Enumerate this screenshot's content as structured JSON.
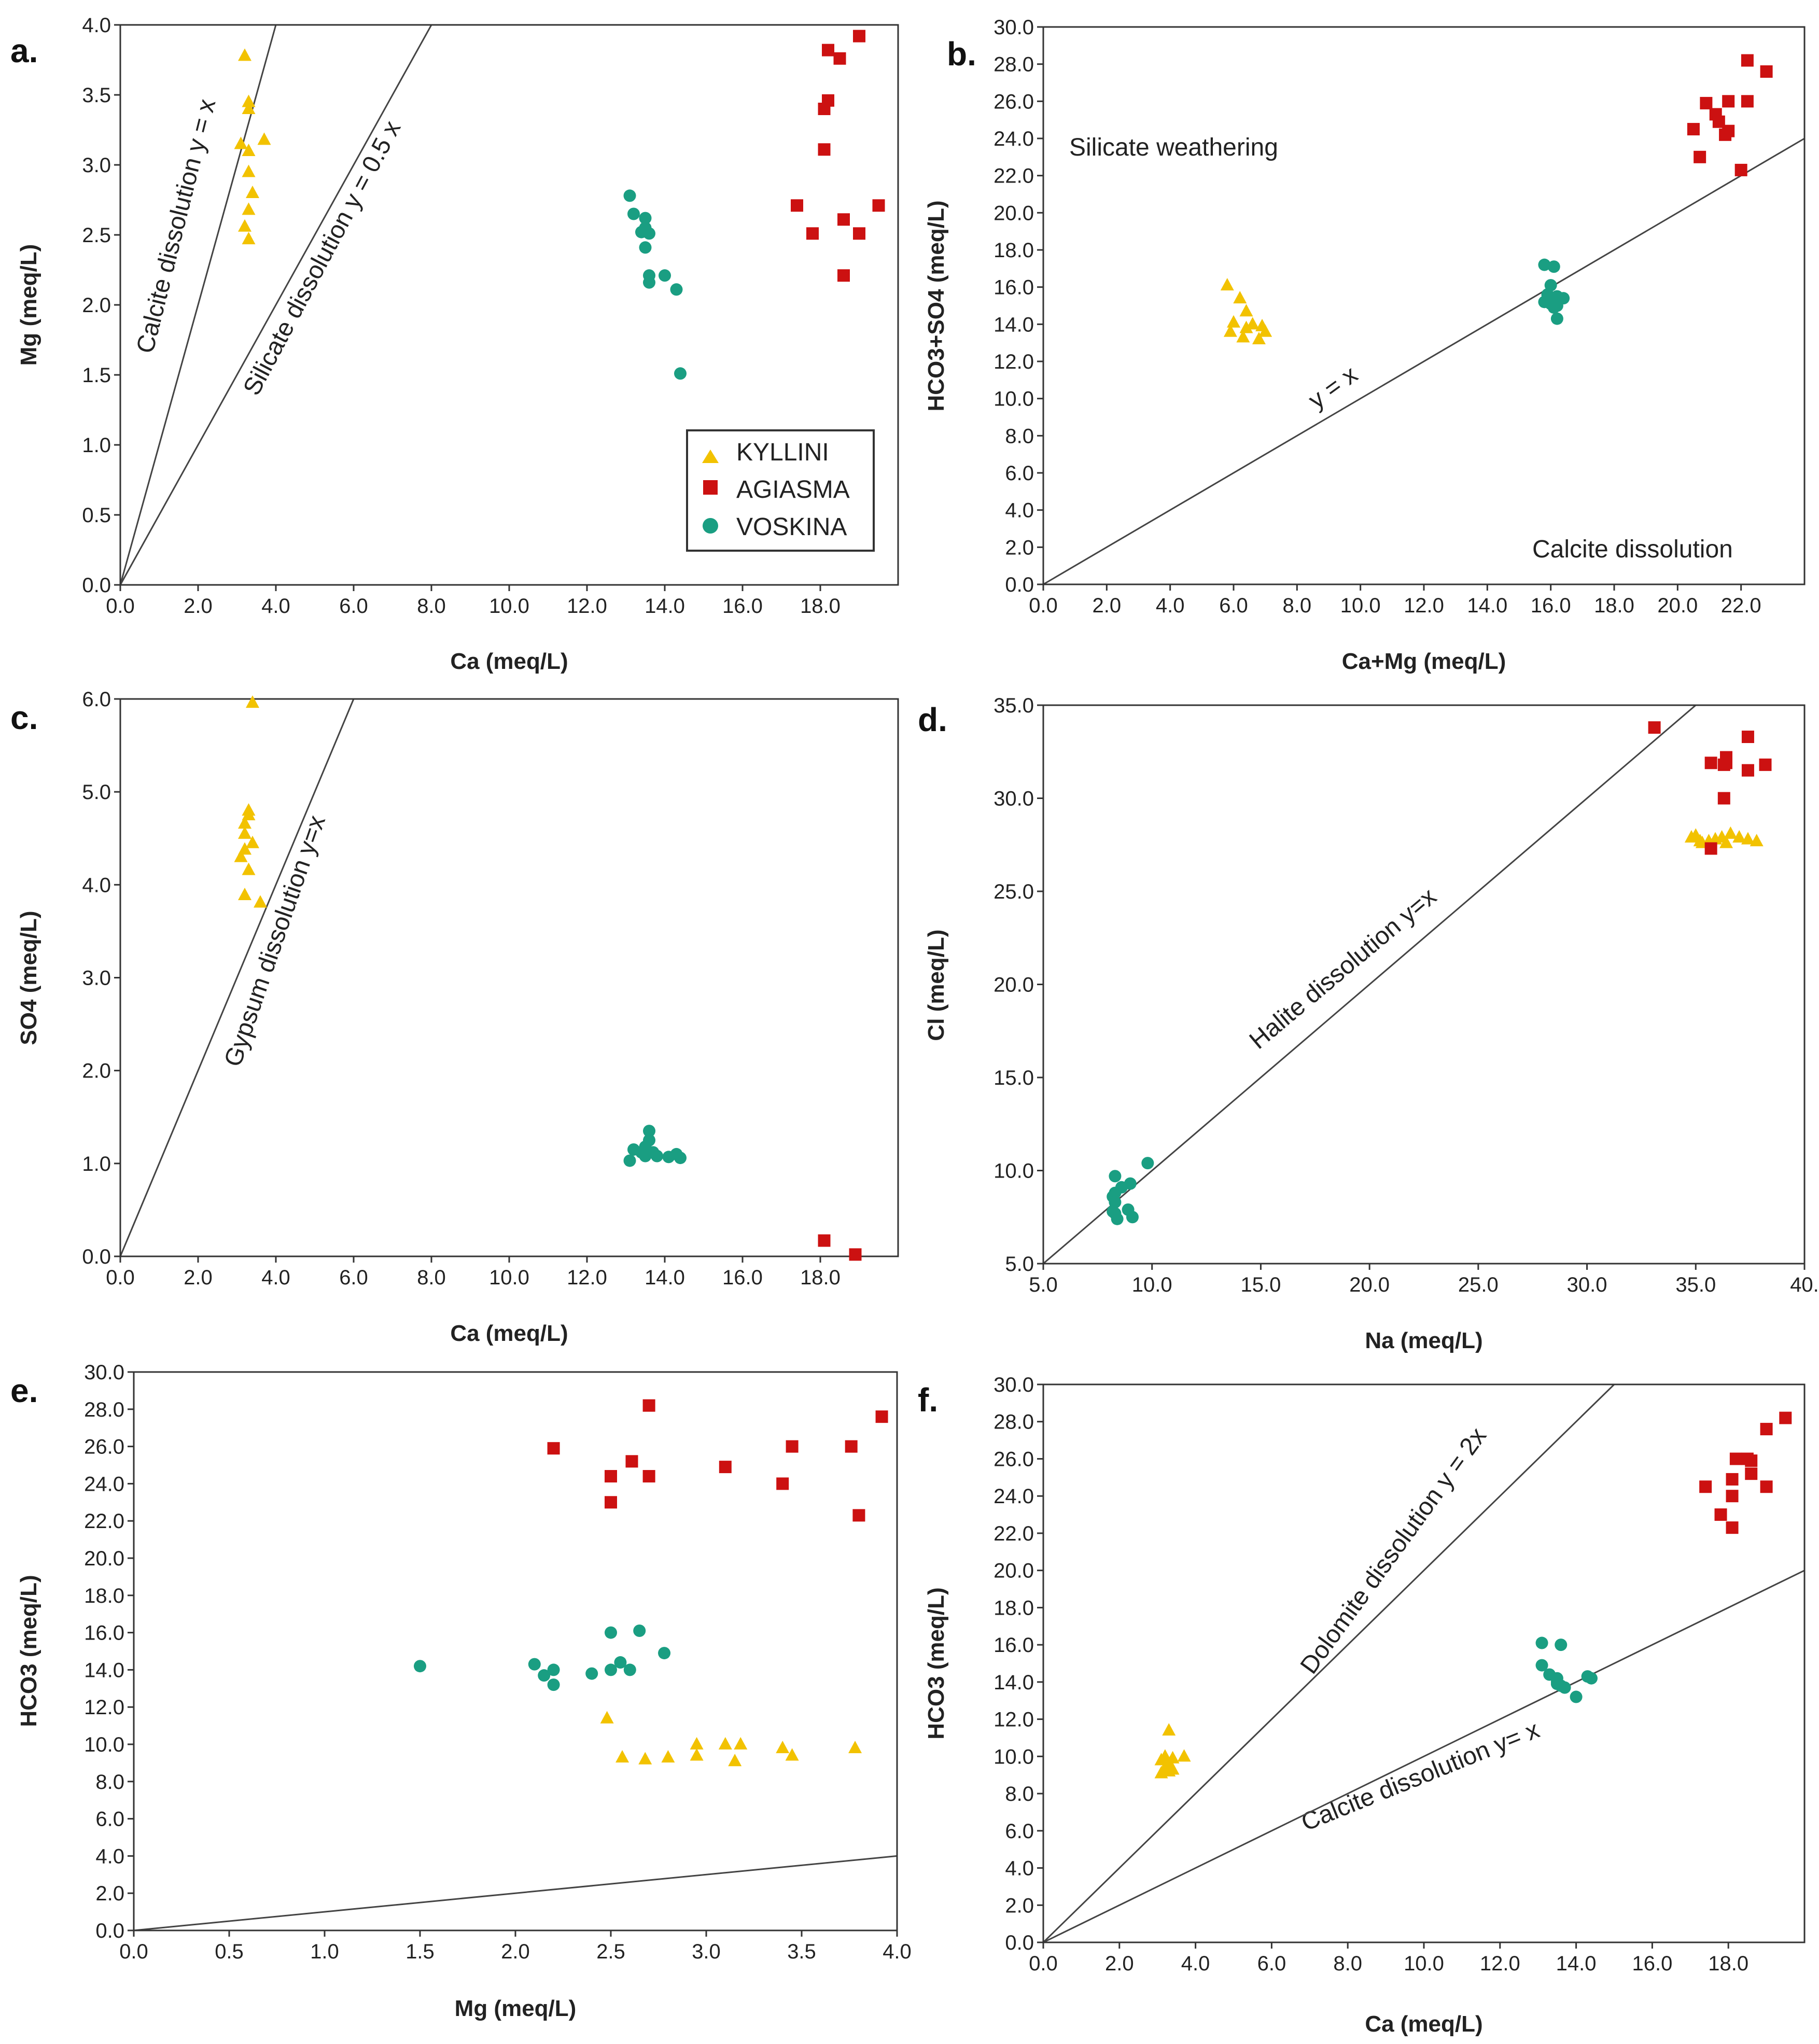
{
  "colors": {
    "kyllini": "#f2c200",
    "agiasma": "#cc1111",
    "voskina": "#1a9e82",
    "axis": "#333333",
    "line": "#444444"
  },
  "legend": [
    {
      "key": "kyllini",
      "label": "KYLLINI",
      "marker": "triangle"
    },
    {
      "key": "agiasma",
      "label": "AGIASMA",
      "marker": "square"
    },
    {
      "key": "voskina",
      "label": "VOSKINA",
      "marker": "circle"
    }
  ],
  "chart_data": [
    {
      "id": "a",
      "panel_label": "a.",
      "type": "scatter",
      "xlabel": "Ca (meq/L)",
      "ylabel": "Mg (meq/L)",
      "xlim": [
        0,
        20
      ],
      "ylim": [
        0,
        4
      ],
      "xticks": [
        "0.0",
        "2.0",
        "4.0",
        "6.0",
        "8.0",
        "10.0",
        "12.0",
        "14.0",
        "16.0",
        "18.0"
      ],
      "yticks": [
        "0.0",
        "0.5",
        "1.0",
        "1.5",
        "2.0",
        "2.5",
        "3.0",
        "3.5",
        "4.0"
      ],
      "lines": [
        {
          "slope": 1,
          "label": "Calcite dissolution  y = x"
        },
        {
          "slope": 0.5,
          "label": "Silicate dissolution  y = 0.5 x"
        }
      ],
      "annotations": [],
      "series": [
        {
          "name": "KYLLINI",
          "x": [
            3.2,
            3.3,
            3.3,
            3.1,
            3.3,
            3.7,
            3.3,
            3.4,
            3.3,
            3.2,
            3.3
          ],
          "y": [
            3.78,
            3.45,
            3.4,
            3.15,
            3.1,
            3.18,
            2.95,
            2.8,
            2.68,
            2.56,
            2.47
          ]
        },
        {
          "name": "AGIASMA",
          "x": [
            19.0,
            18.2,
            18.5,
            18.2,
            18.1,
            18.1,
            17.4,
            17.8,
            18.6,
            19.0,
            19.5,
            18.6
          ],
          "y": [
            3.92,
            3.82,
            3.76,
            3.46,
            3.4,
            3.11,
            2.71,
            2.51,
            2.61,
            2.51,
            2.71,
            2.21
          ]
        },
        {
          "name": "VOSKINA",
          "x": [
            13.1,
            13.2,
            13.5,
            13.5,
            13.4,
            13.6,
            13.5,
            13.6,
            13.6,
            14.0,
            14.3,
            14.4
          ],
          "y": [
            2.78,
            2.65,
            2.62,
            2.55,
            2.52,
            2.51,
            2.41,
            2.21,
            2.16,
            2.21,
            2.11,
            1.51
          ]
        }
      ]
    },
    {
      "id": "b",
      "panel_label": "b.",
      "type": "scatter",
      "xlabel": "Ca+Mg (meq/L)",
      "ylabel": "HCO3+SO4 (meq/L)",
      "xlim": [
        0,
        24
      ],
      "ylim": [
        0,
        30
      ],
      "xticks": [
        "0.0",
        "2.0",
        "4.0",
        "6.0",
        "8.0",
        "10.0",
        "12.0",
        "14.0",
        "16.0",
        "18.0",
        "20.0",
        "22.0"
      ],
      "yticks": [
        "0.0",
        "2.0",
        "4.0",
        "6.0",
        "8.0",
        "10.0",
        "12.0",
        "14.0",
        "16.0",
        "18.0",
        "20.0",
        "22.0",
        "24.0",
        "26.0",
        "28.0",
        "30.0"
      ],
      "lines": [
        {
          "slope": 1,
          "label": "y = x"
        }
      ],
      "annotations": [
        "Silicate weathering",
        "Calcite dissolution"
      ],
      "series": [
        {
          "name": "KYLLINI",
          "x": [
            5.8,
            6.2,
            6.4,
            6.0,
            6.6,
            6.9,
            6.4,
            7.0,
            5.9,
            6.3,
            6.8
          ],
          "y": [
            16.1,
            15.4,
            14.7,
            14.1,
            14.0,
            13.9,
            13.8,
            13.6,
            13.6,
            13.3,
            13.2
          ]
        },
        {
          "name": "AGIASMA",
          "x": [
            22.2,
            22.8,
            20.9,
            21.6,
            21.2,
            21.3,
            22.2,
            21.5,
            20.5,
            21.6,
            20.7,
            22.0
          ],
          "y": [
            28.2,
            27.6,
            25.9,
            26.0,
            25.3,
            24.9,
            26.0,
            24.2,
            24.5,
            24.4,
            23.0,
            22.3
          ]
        },
        {
          "name": "VOSKINA",
          "x": [
            15.8,
            16.1,
            16.0,
            15.9,
            16.2,
            16.4,
            15.8,
            16.0,
            16.2,
            16.1,
            15.9,
            16.2
          ],
          "y": [
            17.2,
            17.1,
            16.1,
            15.6,
            15.5,
            15.4,
            15.2,
            15.1,
            15.0,
            14.9,
            15.6,
            14.3
          ]
        }
      ]
    },
    {
      "id": "c",
      "panel_label": "c.",
      "type": "scatter",
      "xlabel": "Ca (meq/L)",
      "ylabel": "SO4 (meq/L)",
      "xlim": [
        0,
        20
      ],
      "ylim": [
        0,
        6
      ],
      "xticks": [
        "0.0",
        "2.0",
        "4.0",
        "6.0",
        "8.0",
        "10.0",
        "12.0",
        "14.0",
        "16.0",
        "18.0"
      ],
      "yticks": [
        "0.0",
        "1.0",
        "2.0",
        "3.0",
        "4.0",
        "5.0",
        "6.0"
      ],
      "lines": [
        {
          "slope": 1,
          "label": "Gypsum dissolution  y=x"
        }
      ],
      "annotations": [],
      "series": [
        {
          "name": "KYLLINI",
          "x": [
            3.4,
            3.3,
            3.3,
            3.2,
            3.4,
            3.2,
            3.1,
            3.3,
            3.2,
            3.6,
            3.2
          ],
          "y": [
            5.96,
            4.8,
            4.75,
            4.66,
            4.45,
            4.38,
            4.3,
            4.16,
            3.89,
            3.81,
            4.55
          ]
        },
        {
          "name": "AGIASMA",
          "x": [
            18.1,
            18.9
          ],
          "y": [
            0.17,
            0.02
          ]
        },
        {
          "name": "VOSKINA",
          "x": [
            13.6,
            13.6,
            13.5,
            13.2,
            13.4,
            13.8,
            14.3,
            14.4,
            13.1,
            13.5,
            13.7,
            14.1
          ],
          "y": [
            1.35,
            1.25,
            1.18,
            1.15,
            1.12,
            1.08,
            1.1,
            1.06,
            1.03,
            1.08,
            1.12,
            1.07
          ]
        }
      ]
    },
    {
      "id": "d",
      "panel_label": "d.",
      "type": "scatter",
      "xlabel": "Na (meq/L)",
      "ylabel": "Cl (meq/L)",
      "xlim": [
        5,
        40
      ],
      "ylim": [
        5,
        35
      ],
      "xticks": [
        "5.0",
        "10.0",
        "15.0",
        "20.0",
        "25.0",
        "30.0",
        "35.0",
        "40."
      ],
      "yticks": [
        "5.0",
        "10.0",
        "15.0",
        "20.0",
        "25.0",
        "30.0",
        "35.0"
      ],
      "lines": [
        {
          "slope": 1,
          "label": "Halite dissolution   y=x"
        }
      ],
      "annotations": [],
      "series": [
        {
          "name": "KYLLINI",
          "x": [
            34.8,
            35.0,
            35.3,
            35.6,
            35.9,
            36.2,
            36.6,
            37.0,
            37.4,
            37.8,
            36.4,
            35.2
          ],
          "y": [
            27.9,
            28.0,
            27.6,
            27.7,
            27.8,
            27.9,
            28.1,
            27.9,
            27.8,
            27.7,
            27.6,
            27.7
          ]
        },
        {
          "name": "AGIASMA",
          "x": [
            33.1,
            37.4,
            35.7,
            36.4,
            36.4,
            38.2,
            37.4,
            36.3,
            35.7,
            36.3
          ],
          "y": [
            33.8,
            33.3,
            31.9,
            32.2,
            31.9,
            31.8,
            31.5,
            30.0,
            27.3,
            31.8
          ]
        },
        {
          "name": "VOSKINA",
          "x": [
            9.8,
            8.3,
            9.0,
            8.6,
            8.3,
            8.2,
            8.3,
            8.9,
            8.2,
            9.1,
            8.4,
            8.3
          ],
          "y": [
            10.4,
            9.7,
            9.3,
            9.1,
            8.8,
            8.6,
            8.3,
            7.9,
            7.8,
            7.5,
            7.4,
            7.7
          ]
        }
      ]
    },
    {
      "id": "e",
      "panel_label": "e.",
      "type": "scatter",
      "xlabel": "Mg (meq/L)",
      "ylabel": "HCO3 (meq/L)",
      "xlim": [
        0,
        4
      ],
      "ylim": [
        0,
        30
      ],
      "xticks": [
        "0.0",
        "0.5",
        "1.0",
        "1.5",
        "2.0",
        "2.5",
        "3.0",
        "3.5",
        "4.0"
      ],
      "yticks": [
        "0.0",
        "2.0",
        "4.0",
        "6.0",
        "8.0",
        "10.0",
        "12.0",
        "14.0",
        "16.0",
        "18.0",
        "20.0",
        "22.0",
        "24.0",
        "26.0",
        "28.0",
        "30.0"
      ],
      "lines": [
        {
          "slope": 1,
          "label": ""
        }
      ],
      "annotations": [],
      "series": [
        {
          "name": "KYLLINI",
          "x": [
            2.48,
            2.56,
            2.68,
            2.8,
            2.95,
            2.95,
            3.1,
            3.15,
            3.18,
            3.4,
            3.45,
            3.78
          ],
          "y": [
            11.4,
            9.3,
            9.2,
            9.3,
            10.0,
            9.4,
            10.0,
            9.1,
            10.0,
            9.8,
            9.4,
            9.8
          ]
        },
        {
          "name": "AGIASMA",
          "x": [
            2.2,
            2.5,
            2.5,
            2.61,
            2.7,
            2.7,
            3.1,
            3.4,
            3.45,
            3.76,
            3.8,
            3.92
          ],
          "y": [
            25.9,
            24.4,
            23.0,
            25.2,
            28.2,
            24.4,
            24.9,
            24.0,
            26.0,
            26.0,
            22.3,
            27.6
          ]
        },
        {
          "name": "VOSKINA",
          "x": [
            1.5,
            2.1,
            2.15,
            2.2,
            2.2,
            2.4,
            2.5,
            2.5,
            2.55,
            2.6,
            2.65,
            2.78
          ],
          "y": [
            14.2,
            14.3,
            13.7,
            14.0,
            13.2,
            13.8,
            16.0,
            14.0,
            14.4,
            14.0,
            16.1,
            14.9
          ]
        }
      ]
    },
    {
      "id": "f",
      "panel_label": "f.",
      "type": "scatter",
      "xlabel": "Ca (meq/L)",
      "ylabel": "HCO3 (meq/L)",
      "xlim": [
        0,
        20
      ],
      "ylim": [
        0,
        30
      ],
      "xticks": [
        "0.0",
        "2.0",
        "4.0",
        "6.0",
        "8.0",
        "10.0",
        "12.0",
        "14.0",
        "16.0",
        "18.0"
      ],
      "yticks": [
        "0.0",
        "2.0",
        "4.0",
        "6.0",
        "8.0",
        "10.0",
        "12.0",
        "14.0",
        "16.0",
        "18.0",
        "20.0",
        "22.0",
        "24.0",
        "26.0",
        "28.0",
        "30.0"
      ],
      "lines": [
        {
          "slope": 2,
          "label": "Dolomite dissolution  y = 2x"
        },
        {
          "slope": 1,
          "label": "Calcite dissolution  y= x"
        }
      ],
      "annotations": [],
      "series": [
        {
          "name": "KYLLINI",
          "x": [
            3.3,
            3.2,
            3.4,
            3.1,
            3.3,
            3.7,
            3.2,
            3.4,
            3.1,
            3.3,
            3.3
          ],
          "y": [
            11.4,
            10.0,
            9.9,
            9.8,
            9.6,
            10.0,
            9.4,
            9.3,
            9.1,
            9.2,
            9.6
          ]
        },
        {
          "name": "AGIASMA",
          "x": [
            19.5,
            19.0,
            18.2,
            18.5,
            18.6,
            18.1,
            17.4,
            19.0,
            18.1,
            18.6,
            17.8,
            18.1
          ],
          "y": [
            28.2,
            27.6,
            26.0,
            26.0,
            25.9,
            24.9,
            24.5,
            24.5,
            24.0,
            25.2,
            23.0,
            22.3
          ]
        },
        {
          "name": "VOSKINA",
          "x": [
            13.1,
            13.6,
            13.1,
            13.3,
            13.5,
            13.5,
            13.6,
            13.7,
            14.0,
            14.3,
            14.4,
            13.5
          ],
          "y": [
            16.1,
            16.0,
            14.9,
            14.4,
            14.2,
            14.0,
            13.8,
            13.7,
            13.2,
            14.3,
            14.2,
            13.9
          ]
        }
      ]
    }
  ]
}
